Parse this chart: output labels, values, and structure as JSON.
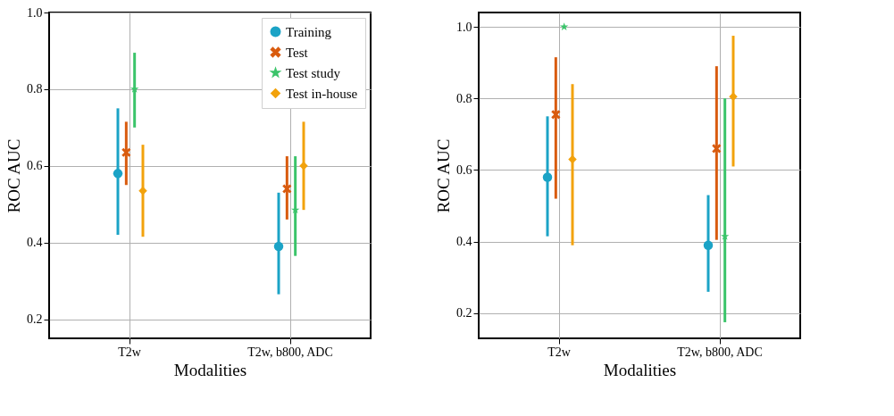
{
  "chart_data": [
    {
      "type": "scatter",
      "xlabel": "Modalities",
      "ylabel": "ROC AUC",
      "categories": [
        "T2w",
        "T2w, b800, ADC"
      ],
      "ylim": [
        0.15,
        1.0
      ],
      "yticks": [
        0.2,
        0.4,
        0.6,
        0.8,
        {
          "value": 1,
          "label": "1.0"
        }
      ],
      "grid": true,
      "legend": "top right",
      "series": [
        {
          "name": "Training",
          "color": "#1ba3c6",
          "marker": "circle",
          "values": [
            0.58,
            0.39
          ],
          "errors": [
            [
              0.42,
              0.75
            ],
            [
              0.265,
              0.53
            ]
          ]
        },
        {
          "name": "Test",
          "color": "#d95b0e",
          "marker": "cross",
          "values": [
            0.635,
            0.54
          ],
          "errors": [
            [
              0.55,
              0.715
            ],
            [
              0.46,
              0.625
            ]
          ]
        },
        {
          "name": "Test study",
          "color": "#3bc46a",
          "marker": "star",
          "values": [
            0.8,
            0.485
          ],
          "errors": [
            [
              0.7,
              0.895
            ],
            [
              0.365,
              0.625
            ]
          ]
        },
        {
          "name": "Test in-house",
          "color": "#f2a20c",
          "marker": "diamond",
          "values": [
            0.535,
            0.6
          ],
          "errors": [
            [
              0.415,
              0.655
            ],
            [
              0.485,
              0.715
            ]
          ]
        }
      ]
    },
    {
      "type": "scatter",
      "xlabel": "Modalities",
      "ylabel": "ROC AUC",
      "categories": [
        "T2w",
        "T2w, b800, ADC"
      ],
      "ylim": [
        0.13,
        1.04
      ],
      "yticks": [
        0.2,
        0.4,
        0.6,
        0.8,
        {
          "value": 1,
          "label": "1.0"
        }
      ],
      "grid": true,
      "series": [
        {
          "color": "#1ba3c6",
          "marker": "circle",
          "values": [
            0.58,
            0.39
          ],
          "errors": [
            [
              0.415,
              0.75
            ],
            [
              0.26,
              0.53
            ]
          ]
        },
        {
          "color": "#d95b0e",
          "marker": "cross",
          "values": [
            0.755,
            0.66
          ],
          "errors": [
            [
              0.52,
              0.915
            ],
            [
              0.405,
              0.89
            ]
          ]
        },
        {
          "color": "#3bc46a",
          "marker": "star",
          "values": [
            1.0,
            0.415
          ],
          "errors": [
            null,
            [
              0.175,
              0.8
            ]
          ]
        },
        {
          "color": "#f2a20c",
          "marker": "diamond",
          "values": [
            0.63,
            0.805
          ],
          "errors": [
            [
              0.39,
              0.84
            ],
            [
              0.61,
              0.975
            ]
          ]
        }
      ]
    }
  ]
}
